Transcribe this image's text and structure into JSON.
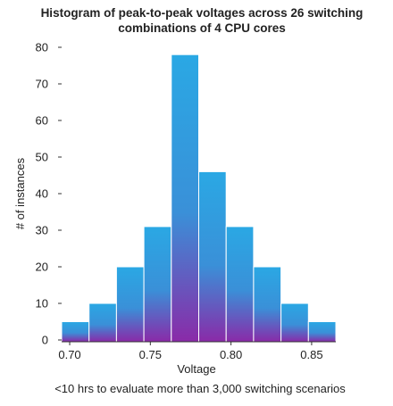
{
  "chart_data": {
    "type": "bar",
    "title": "Histogram of peak-to-peak voltages across 26 switching combinations of 4 CPU cores",
    "title_lines": [
      "Histogram of peak-to-peak voltages across 26 switching",
      "combinations of 4 CPU cores"
    ],
    "xlabel": "Voltage",
    "ylabel": "# of instances",
    "caption": "<10 hrs to evaluate more than 3,000 switching scenarios",
    "xlim": [
      0.695,
      0.865
    ],
    "ylim": [
      0,
      80
    ],
    "x_ticks": [
      0.7,
      0.75,
      0.8,
      0.85
    ],
    "x_tick_labels": [
      "0.70",
      "0.75",
      "0.80",
      "0.85"
    ],
    "y_ticks": [
      0,
      10,
      20,
      30,
      40,
      50,
      60,
      70,
      80
    ],
    "y_tick_labels": [
      "0",
      "10",
      "20",
      "30",
      "40",
      "50",
      "60",
      "70",
      "80"
    ],
    "grid": false,
    "bins": [
      {
        "start": 0.695,
        "end": 0.712,
        "value": 5
      },
      {
        "start": 0.712,
        "end": 0.729,
        "value": 10
      },
      {
        "start": 0.729,
        "end": 0.746,
        "value": 20
      },
      {
        "start": 0.746,
        "end": 0.763,
        "value": 31
      },
      {
        "start": 0.763,
        "end": 0.78,
        "value": 78
      },
      {
        "start": 0.78,
        "end": 0.797,
        "value": 46
      },
      {
        "start": 0.797,
        "end": 0.814,
        "value": 31
      },
      {
        "start": 0.814,
        "end": 0.831,
        "value": 20
      },
      {
        "start": 0.831,
        "end": 0.848,
        "value": 10
      },
      {
        "start": 0.848,
        "end": 0.865,
        "value": 5
      }
    ],
    "colors": {
      "bar_top": "#2aa8e4",
      "bar_bottom": "#8a2aa8",
      "axis": "#333333",
      "text": "#222222",
      "bar_edge": "#ffffff"
    }
  }
}
